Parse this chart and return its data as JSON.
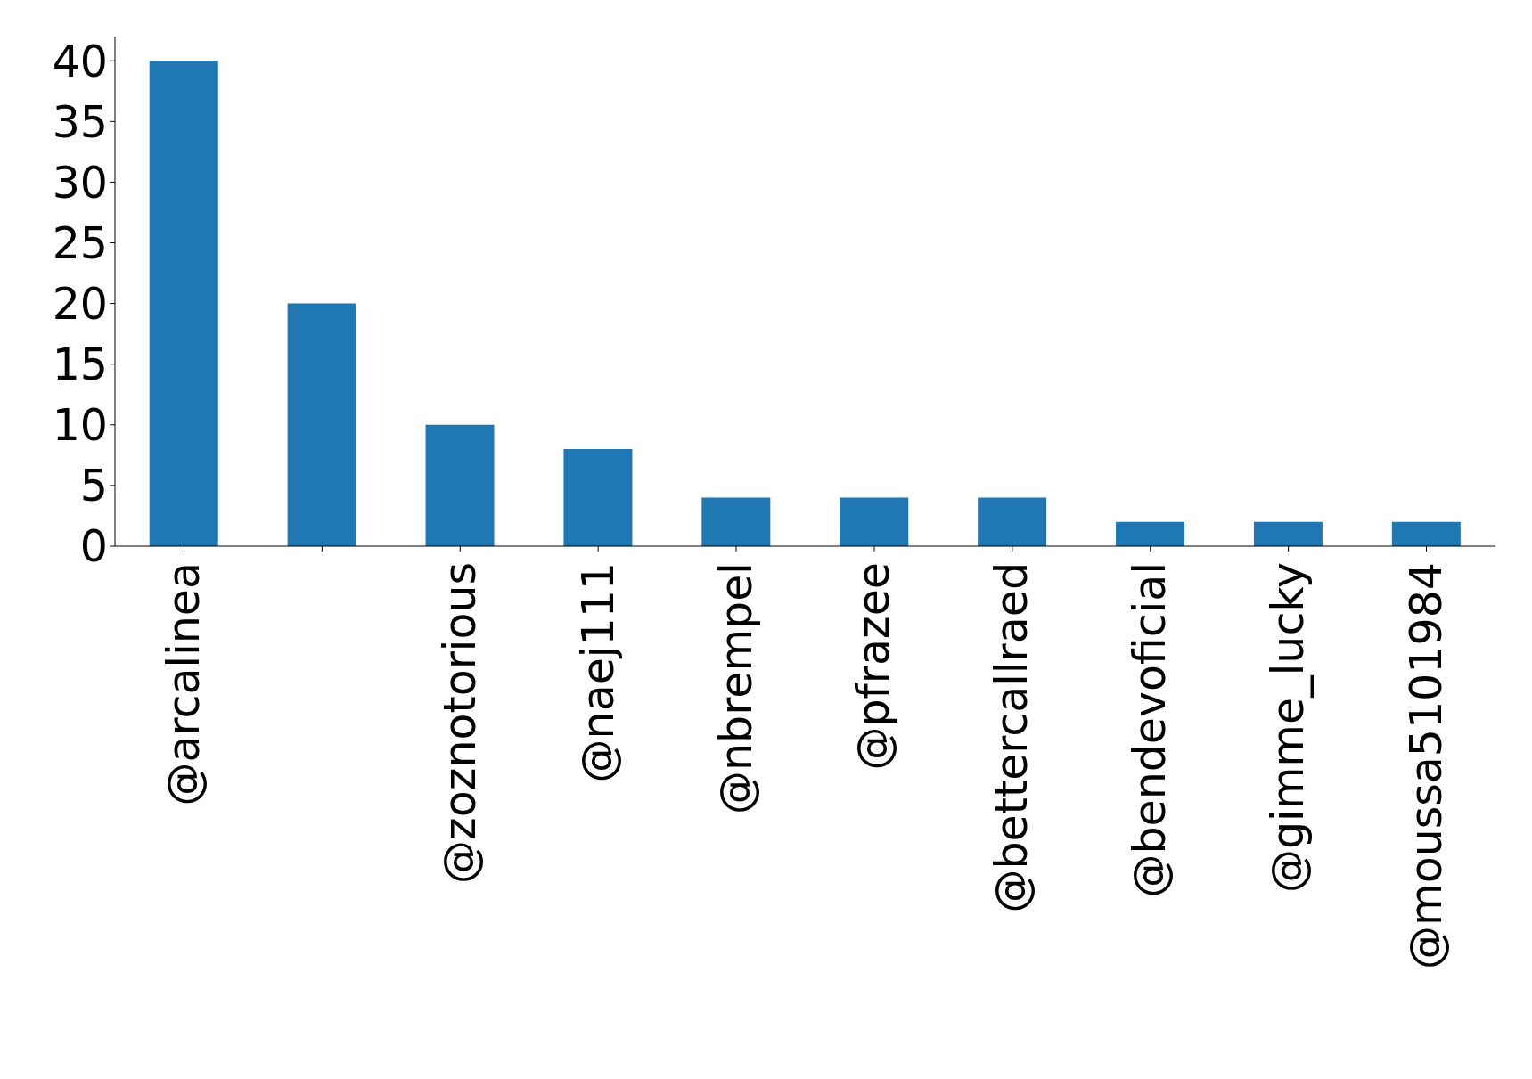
{
  "chart_data": {
    "type": "bar",
    "categories": [
      "@arcalinea",
      null,
      "@zoznotorious",
      "@naej111",
      "@nbrempel",
      "@pfrazee",
      "@bettercallraed",
      "@bendevoficial",
      "@gimme_lucky",
      "@moussa5101984"
    ],
    "values": [
      40,
      20,
      10,
      8,
      4,
      4,
      4,
      2,
      2,
      2
    ],
    "color": "#1f77b4",
    "ylim": [
      0,
      42
    ],
    "yticks": [
      0,
      5,
      10,
      15,
      20,
      25,
      30,
      35,
      40
    ],
    "grid": false,
    "legend": false
  }
}
